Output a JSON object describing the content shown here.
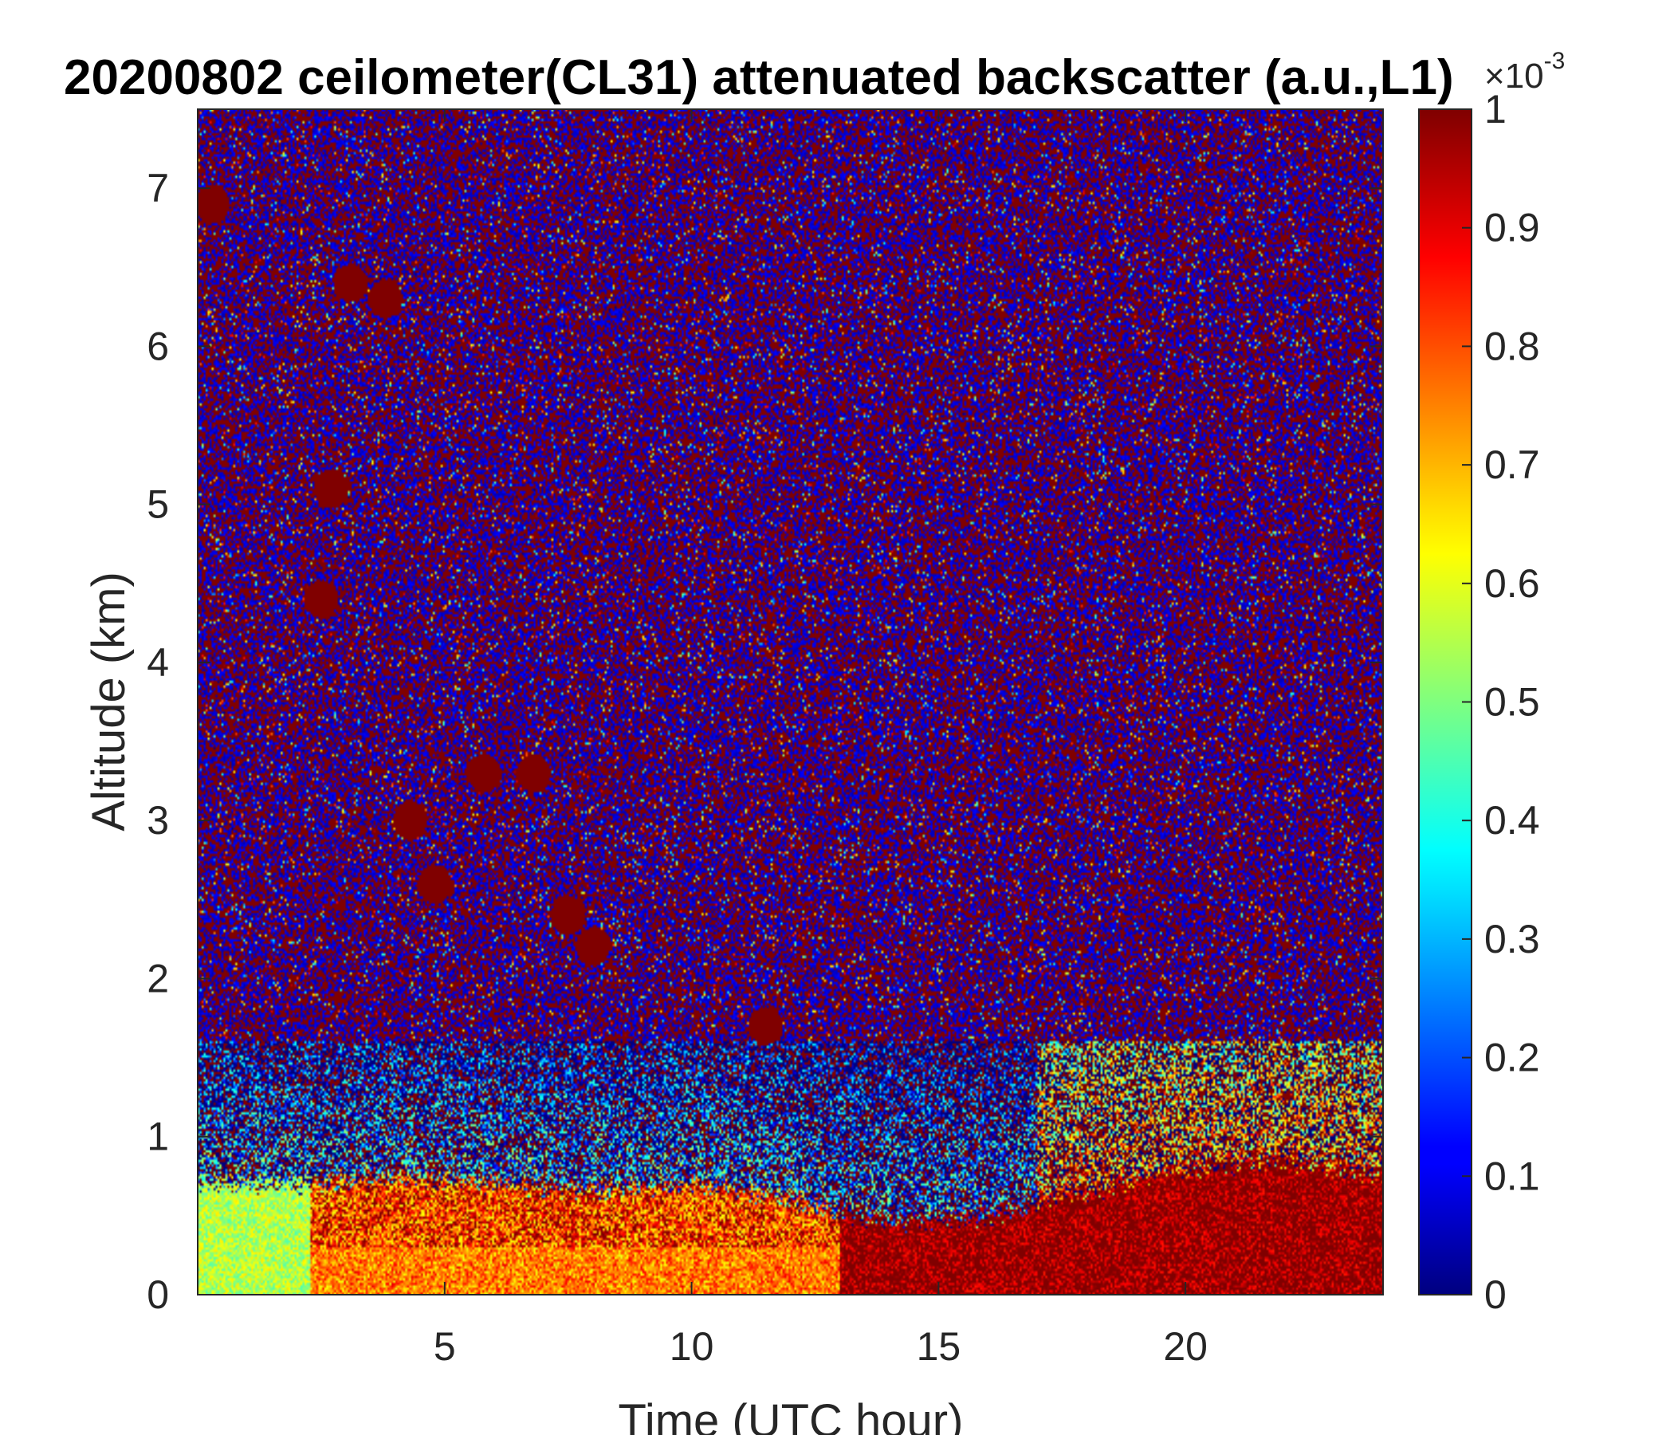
{
  "chart_data": {
    "type": "heatmap",
    "title": "20200802 ceilometer(CL31) attenuated backscatter (a.u.,L1)",
    "xlabel": "Time (UTC hour)",
    "ylabel": "Altitude (km)",
    "xlim": [
      0,
      24
    ],
    "ylim": [
      0,
      7.5
    ],
    "xticks": [
      5,
      10,
      15,
      20
    ],
    "yticks": [
      0,
      1,
      2,
      3,
      4,
      5,
      6,
      7
    ],
    "colormap": "jet",
    "colorbar": {
      "clim": [
        0,
        1
      ],
      "ticks": [
        0,
        0.1,
        0.2,
        0.3,
        0.4,
        0.5,
        0.6,
        0.7,
        0.8,
        0.9,
        1
      ],
      "exponent_base": "×10",
      "exponent_power": "-3"
    },
    "layers": [
      {
        "name": "boundary layer",
        "x_range": [
          0,
          24
        ],
        "top_km": [
          0.7,
          0.7,
          0.75,
          0.7,
          0.65,
          0.7,
          0.6,
          0.45,
          0.5,
          0.65,
          0.8,
          0.85,
          0.75
        ]
      },
      {
        "name": "aerosol plume",
        "points_km": [
          [
            0.3,
            6.9
          ],
          [
            2.5,
            4.4
          ],
          [
            3.1,
            6.4
          ],
          [
            3.8,
            6.3
          ],
          [
            2.7,
            5.1
          ],
          [
            4.3,
            3.0
          ],
          [
            4.8,
            2.6
          ],
          [
            5.8,
            3.3
          ],
          [
            6.8,
            3.3
          ],
          [
            7.5,
            2.4
          ],
          [
            8.0,
            2.2
          ],
          [
            11.5,
            1.7
          ]
        ]
      }
    ]
  }
}
